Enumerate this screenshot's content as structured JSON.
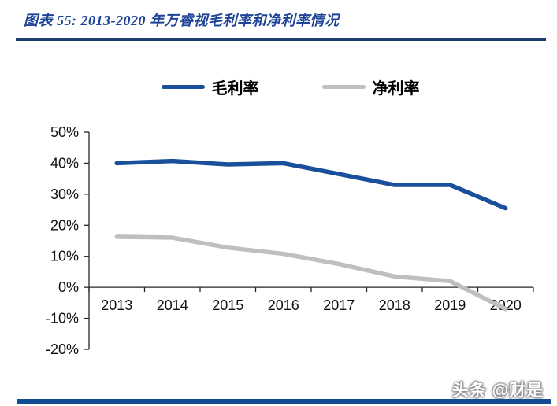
{
  "header": {
    "title": "图表 55:  2013-2020 年万睿视毛利率和净利率情况"
  },
  "watermark": "头条 @财是",
  "colors": {
    "title_blue": "#1F4497",
    "rule_navy": "#1A3C6E",
    "bottom_bar_blue": "#114C93",
    "gross_margin_line": "#1A4F9C",
    "net_margin_line": "#BFBFBF",
    "axis": "#262626"
  },
  "chart_data": {
    "type": "line",
    "title": "图表 55: 2013-2020 年万睿视毛利率和净利率情况",
    "categories": [
      "2013",
      "2014",
      "2015",
      "2016",
      "2017",
      "2018",
      "2019",
      "2020"
    ],
    "series": [
      {
        "name": "毛利率",
        "color": "#1A4F9C",
        "values": [
          40.0,
          40.7,
          39.6,
          40.0,
          36.5,
          33.0,
          33.0,
          25.5
        ]
      },
      {
        "name": "净利率",
        "color": "#BFBFBF",
        "values": [
          16.3,
          16.0,
          12.8,
          10.8,
          7.5,
          3.5,
          2.0,
          -7.0
        ]
      }
    ],
    "xlabel": "",
    "ylabel": "",
    "ylim": [
      -20,
      50
    ],
    "ytick_values": [
      50,
      40,
      30,
      20,
      10,
      0,
      -10,
      -20
    ],
    "ytick_labels": [
      "50%",
      "40%",
      "30%",
      "20%",
      "10%",
      "0%",
      "-10%",
      "-20%"
    ],
    "grid": false,
    "legend_position": "top"
  }
}
